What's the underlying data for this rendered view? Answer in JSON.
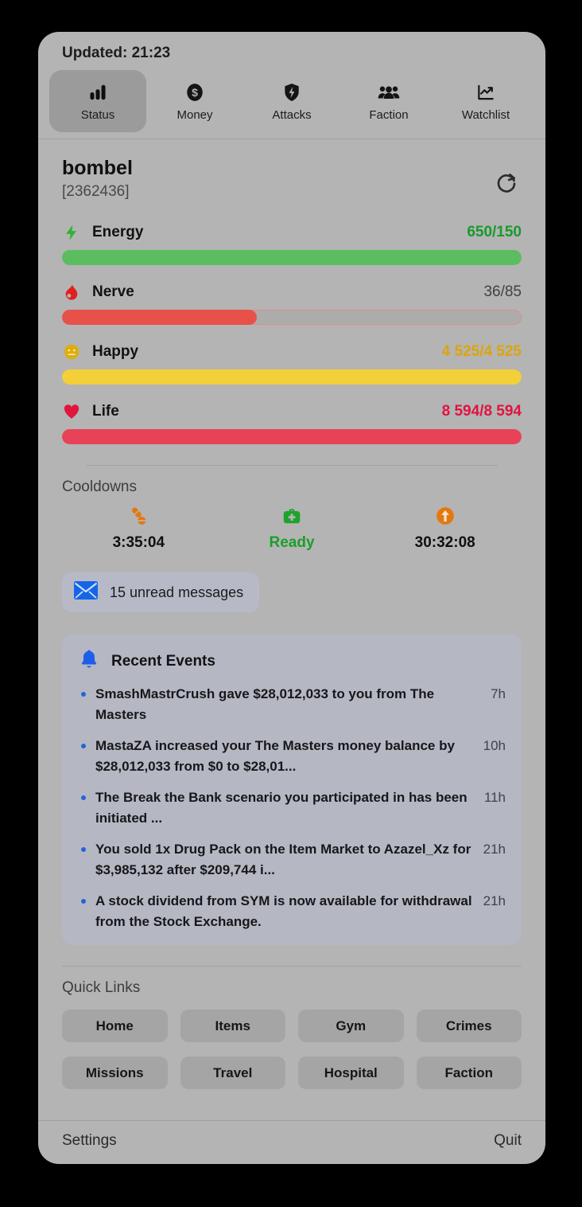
{
  "header": {
    "updated_label": "Updated: 21:23"
  },
  "tabs": [
    {
      "label": "Status",
      "icon": "bar-chart-icon",
      "selected": true
    },
    {
      "label": "Money",
      "icon": "dollar-circle-icon",
      "selected": false
    },
    {
      "label": "Attacks",
      "icon": "shield-bolt-icon",
      "selected": false
    },
    {
      "label": "Faction",
      "icon": "people-icon",
      "selected": false
    },
    {
      "label": "Watchlist",
      "icon": "trend-chart-icon",
      "selected": false
    }
  ],
  "profile": {
    "name": "bombel",
    "id": "[2362436]"
  },
  "stats": [
    {
      "label": "Energy",
      "value": "650/150",
      "icon": "bolt-icon",
      "percent": 100
    },
    {
      "label": "Nerve",
      "value": "36/85",
      "icon": "flame-icon",
      "percent": 42.4
    },
    {
      "label": "Happy",
      "value": "4 525/4 525",
      "icon": "smiley-icon",
      "percent": 100
    },
    {
      "label": "Life",
      "value": "8 594/8 594",
      "icon": "heart-icon",
      "percent": 100
    }
  ],
  "cooldowns": {
    "title": "Cooldowns",
    "items": [
      {
        "icon": "pills-icon",
        "value": "3:35:04"
      },
      {
        "icon": "medkit-icon",
        "value": "Ready"
      },
      {
        "icon": "booster-icon",
        "value": "30:32:08"
      }
    ]
  },
  "messages": {
    "icon": "envelope-icon",
    "label": "15 unread messages"
  },
  "events": {
    "icon": "bell-icon",
    "title": "Recent Events",
    "items": [
      {
        "text": "SmashMastrCrush gave $28,012,033 to you from The Masters",
        "time": "7h"
      },
      {
        "text": "MastaZA increased your The Masters money balance by $28,012,033 from $0 to $28,01...",
        "time": "10h"
      },
      {
        "text": "The Break the Bank scenario you participated in has been initiated ...",
        "time": "11h"
      },
      {
        "text": "You sold 1x Drug Pack on the Item Market to Azazel_Xz for $3,985,132 after $209,744 i...",
        "time": "21h"
      },
      {
        "text": "A stock dividend from SYM is now available for withdrawal from the Stock Exchange.",
        "time": "21h"
      }
    ]
  },
  "quick_links": {
    "title": "Quick Links",
    "buttons": [
      "Home",
      "Items",
      "Gym",
      "Crimes",
      "Missions",
      "Travel",
      "Hospital",
      "Faction"
    ]
  },
  "footer": {
    "settings": "Settings",
    "quit": "Quit"
  },
  "colors": {
    "window_bg": "#b4b4b4",
    "accent_blue": "#2563d8",
    "energy_bar": "#5bbd5f",
    "energy_text": "#189a2e",
    "nerve_bar": "#e85149",
    "nerve_text": "#414143",
    "happy_bar": "#f3cf39",
    "happy_text": "#dca50a",
    "life_bar": "#e84258",
    "life_text": "#df1442",
    "cooldown_orange": "#e2790f",
    "medkit_green": "#1fa32a",
    "ready_green": "#1b9e2c"
  }
}
